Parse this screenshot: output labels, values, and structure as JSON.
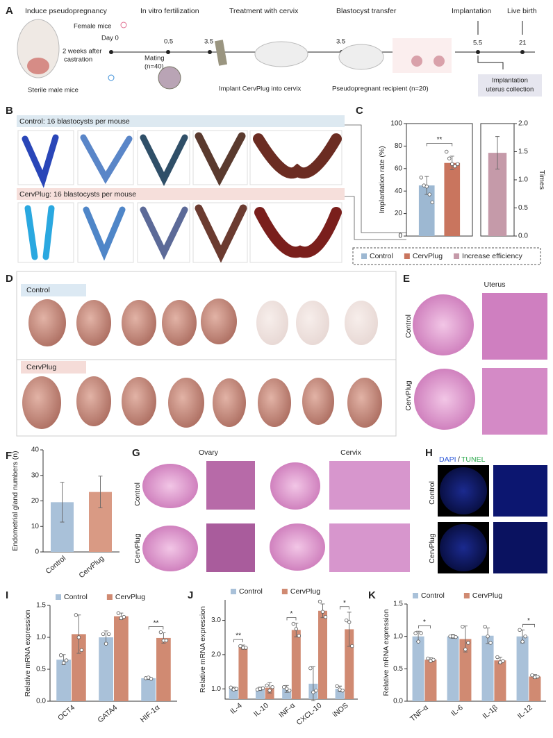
{
  "figure": {
    "panel_labels": [
      "A",
      "B",
      "C",
      "D",
      "E",
      "F",
      "G",
      "H",
      "I",
      "J",
      "K"
    ],
    "a": {
      "steps": [
        "Induce pseudopregnancy",
        "In vitro fertilization",
        "Treatment with cervix",
        "Blastocyst transfer",
        "Implantation",
        "Live birth"
      ],
      "female": "Female mice",
      "day": "Day 0",
      "castration": [
        "2 weeks after",
        "castration"
      ],
      "male": "Sterile male mice",
      "mating": [
        "Mating",
        "(n=40)"
      ],
      "timeline": [
        "0.5",
        "3.5",
        "3.5",
        "5.5",
        "21"
      ],
      "implant": "Implant CervPlug into cervix",
      "recipient": "Pseudopregnant recipient (n=20)",
      "collection": [
        "Implantation",
        "uterus collection"
      ]
    },
    "b": {
      "control": "Control: 16 blastocysts per mouse",
      "cervplug": "CervPlug: 16 blastocysts per mouse"
    },
    "d": {
      "control": "Control",
      "cervplug": "CervPlug"
    },
    "e": {
      "title": "Uterus",
      "rows": [
        "Control",
        "CervPlug"
      ]
    },
    "g": {
      "columns": [
        "Ovary",
        "Cervix"
      ],
      "rows": [
        "Control",
        "CervPlug"
      ]
    },
    "h": {
      "stains": [
        "DAPI",
        "/",
        "TUNEL"
      ],
      "rows": [
        "Control",
        "CervPlug"
      ]
    }
  },
  "chart_data": [
    {
      "type": "bar",
      "ylabel": "Implantation rate (%)",
      "y2label": "Times",
      "ylim": [
        0,
        100
      ],
      "yticks": [
        0,
        20,
        40,
        60,
        80,
        100
      ],
      "y2lim": [
        0,
        2
      ],
      "y2ticks": [
        {
          "value": 0,
          "label": "0.0"
        },
        0.5,
        {
          "value": 1,
          "label": "1.0"
        },
        1.5,
        {
          "value": 2,
          "label": "2.0"
        }
      ],
      "legend": "bottom",
      "significance": "**",
      "series": [
        {
          "name": "Control",
          "color": "#9db8d2",
          "values": [
            45
          ],
          "errors": [
            8
          ],
          "points": [
            [
              52,
              45,
              44,
              37,
              30
            ]
          ]
        },
        {
          "name": "CervPlug",
          "color": "#c9755e",
          "values": [
            65
          ],
          "errors": [
            6
          ],
          "points": [
            [
              75,
              69,
              64,
              62,
              64
            ]
          ]
        },
        {
          "name": "Increase efficiency",
          "color": "#c59aa9",
          "axis": "y2",
          "values": [
            1.48
          ],
          "errors": [
            0.29
          ]
        }
      ]
    },
    {
      "type": "bar",
      "ylabel": "Endometrial gland numbers (n)",
      "categories": [
        "Control",
        "CervPlug"
      ],
      "values": [
        19.5,
        23.5
      ],
      "errors": [
        7.8,
        6.2
      ],
      "colors": [
        "#a9c1d9",
        "#d99a84"
      ],
      "ylim": [
        0,
        40
      ],
      "yticks": [
        0,
        10,
        20,
        30,
        40
      ]
    },
    {
      "type": "bar",
      "ylabel": "Relative mRNA expression",
      "legend": "top",
      "categories": [
        "OCT4",
        "GATA4",
        "HIF-1α"
      ],
      "ylim": [
        0,
        1.5
      ],
      "yticks": [
        {
          "value": 0,
          "label": "0.0"
        },
        0.5,
        {
          "value": 1,
          "label": "1.0"
        },
        1.5
      ],
      "significance": [
        null,
        null,
        "**"
      ],
      "series": [
        {
          "name": "Control",
          "color": "#a9c1d9",
          "values": [
            0.65,
            1.0,
            0.36
          ],
          "errors": [
            0.08,
            0.1,
            0.02
          ],
          "points": [
            [
              0.72,
              0.6,
              0.64
            ],
            [
              1.05,
              0.9,
              1.05
            ],
            [
              0.36,
              0.37,
              0.35
            ]
          ]
        },
        {
          "name": "CervPlug",
          "color": "#d08a72",
          "values": [
            1.05,
            1.33,
            0.99
          ],
          "errors": [
            0.3,
            0.05,
            0.08
          ],
          "points": [
            [
              1.35,
              1.0,
              0.8
            ],
            [
              1.38,
              1.3,
              1.32
            ],
            [
              1.08,
              0.95,
              0.95
            ]
          ]
        }
      ]
    },
    {
      "type": "bar",
      "ylabel": "Relative mRNA expression",
      "legend": "top",
      "categories": [
        "IL-4",
        "IL-10",
        "INF-α",
        "CXCL-10",
        "iNOS"
      ],
      "ylim": [
        0.7,
        3.6
      ],
      "yticks": [
        {
          "value": 1,
          "label": "1.0"
        },
        {
          "value": 2,
          "label": "2.0"
        },
        {
          "value": 3,
          "label": "3.0"
        }
      ],
      "significance": [
        "**",
        null,
        "*",
        null,
        "*"
      ],
      "series": [
        {
          "name": "Control",
          "color": "#a9c1d9",
          "values": [
            1.0,
            1.0,
            1.0,
            1.15,
            1.0
          ],
          "errors": [
            0.05,
            0.05,
            0.1,
            0.5,
            0.08
          ],
          "points": [
            [
              1.04,
              0.98,
              1.0
            ],
            [
              0.98,
              1.0,
              1.02
            ],
            [
              1.05,
              1.0,
              0.95
            ],
            [
              1.6,
              0.9,
              0.95
            ],
            [
              1.08,
              0.98,
              0.95
            ]
          ]
        },
        {
          "name": "CervPlug",
          "color": "#d08a72",
          "values": [
            2.22,
            1.03,
            2.72,
            3.28,
            2.74
          ],
          "errors": [
            0.06,
            0.15,
            0.2,
            0.2,
            0.5
          ],
          "points": [
            [
              2.25,
              2.2,
              2.2
            ],
            [
              1.1,
              0.95,
              1.05
            ],
            [
              2.9,
              2.75,
              2.55
            ],
            [
              3.55,
              3.25,
              3.1
            ],
            [
              3.0,
              2.95,
              2.25
            ]
          ]
        }
      ]
    },
    {
      "type": "bar",
      "ylabel": "Relative mRNA expression",
      "legend": "top",
      "categories": [
        "TNF-α",
        "IL-6",
        "IL-1β",
        "IL-12"
      ],
      "ylim": [
        0,
        1.5
      ],
      "yticks": [
        {
          "value": 0,
          "label": "0.0"
        },
        0.5,
        {
          "value": 1,
          "label": "1.0"
        },
        1.5
      ],
      "significance": [
        "*",
        null,
        null,
        "*"
      ],
      "series": [
        {
          "name": "Control",
          "color": "#a9c1d9",
          "values": [
            1.0,
            1.0,
            1.01,
            1.0
          ],
          "errors": [
            0.08,
            0.03,
            0.12,
            0.1
          ],
          "points": [
            [
              1.05,
              0.92,
              1.05
            ],
            [
              1.0,
              1.0,
              0.99
            ],
            [
              1.15,
              1.0,
              0.9
            ],
            [
              1.1,
              0.92,
              1.0
            ]
          ]
        },
        {
          "name": "CervPlug",
          "color": "#d08a72",
          "values": [
            0.64,
            0.96,
            0.63,
            0.38
          ],
          "errors": [
            0.03,
            0.2,
            0.05,
            0.03
          ],
          "points": [
            [
              0.66,
              0.62,
              0.64
            ],
            [
              1.15,
              0.8,
              0.9
            ],
            [
              0.68,
              0.6,
              0.62
            ],
            [
              0.4,
              0.37,
              0.38
            ]
          ]
        }
      ]
    }
  ]
}
